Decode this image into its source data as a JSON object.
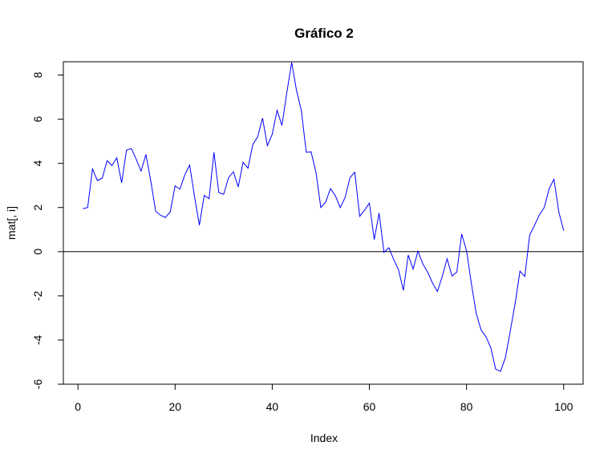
{
  "chart_data": {
    "type": "line",
    "title": "Gráfico 2",
    "xlabel": "Index",
    "ylabel": "mat[, i]",
    "xlim": [
      -3,
      104
    ],
    "ylim": [
      -6,
      8.6
    ],
    "x_ticks": [
      0,
      20,
      40,
      60,
      80,
      100
    ],
    "y_ticks": [
      -6,
      -4,
      -2,
      0,
      2,
      4,
      6,
      8
    ],
    "x_tick_labels": [
      "0",
      "20",
      "40",
      "60",
      "80",
      "100"
    ],
    "y_tick_labels": [
      "-6",
      "-4",
      "-2",
      "0",
      "2",
      "4",
      "6",
      "8"
    ],
    "reference_line": {
      "y": 0,
      "color": "#000000"
    },
    "grid": false,
    "series": [
      {
        "color": "#0000ff",
        "x": [
          1,
          2,
          3,
          4,
          5,
          6,
          7,
          8,
          9,
          10,
          11,
          12,
          13,
          14,
          15,
          16,
          17,
          18,
          19,
          20,
          21,
          22,
          23,
          24,
          25,
          26,
          27,
          28,
          29,
          30,
          31,
          32,
          33,
          34,
          35,
          36,
          37,
          38,
          39,
          40,
          41,
          42,
          43,
          44,
          45,
          46,
          47,
          48,
          49,
          50,
          51,
          52,
          53,
          54,
          55,
          56,
          57,
          58,
          59,
          60,
          61,
          62,
          63,
          64,
          65,
          66,
          67,
          68,
          69,
          70,
          71,
          72,
          73,
          74,
          75,
          76,
          77,
          78,
          79,
          80,
          81,
          82,
          83,
          84,
          85,
          86,
          87,
          88,
          89,
          90,
          91,
          92,
          93,
          94,
          95,
          96,
          97,
          98,
          99,
          100
        ],
        "values": [
          1.95,
          2.0,
          3.75,
          3.22,
          3.33,
          4.12,
          3.9,
          4.25,
          3.12,
          4.6,
          4.67,
          4.18,
          3.65,
          4.4,
          3.2,
          1.83,
          1.65,
          1.55,
          1.8,
          2.98,
          2.83,
          3.48,
          3.92,
          2.5,
          1.2,
          2.55,
          2.4,
          4.5,
          2.68,
          2.6,
          3.35,
          3.62,
          2.93,
          4.05,
          3.78,
          4.85,
          5.2,
          6.05,
          4.8,
          5.32,
          6.4,
          5.72,
          7.2,
          8.57,
          7.3,
          6.38,
          4.5,
          4.52,
          3.6,
          2.0,
          2.25,
          2.86,
          2.53,
          2.0,
          2.45,
          3.35,
          3.6,
          1.6,
          1.88,
          2.2,
          0.55,
          1.75,
          -0.03,
          0.18,
          -0.35,
          -0.82,
          -1.75,
          -0.15,
          -0.78,
          0.02,
          -0.55,
          -0.93,
          -1.42,
          -1.8,
          -1.12,
          -0.32,
          -1.1,
          -0.92,
          0.8,
          0.05,
          -1.45,
          -2.8,
          -3.55,
          -3.85,
          -4.35,
          -5.32,
          -5.42,
          -4.8,
          -3.6,
          -2.35,
          -0.88,
          -1.12,
          0.75,
          1.2,
          1.67,
          2.0,
          2.85,
          3.28,
          1.8,
          0.95
        ]
      }
    ]
  }
}
